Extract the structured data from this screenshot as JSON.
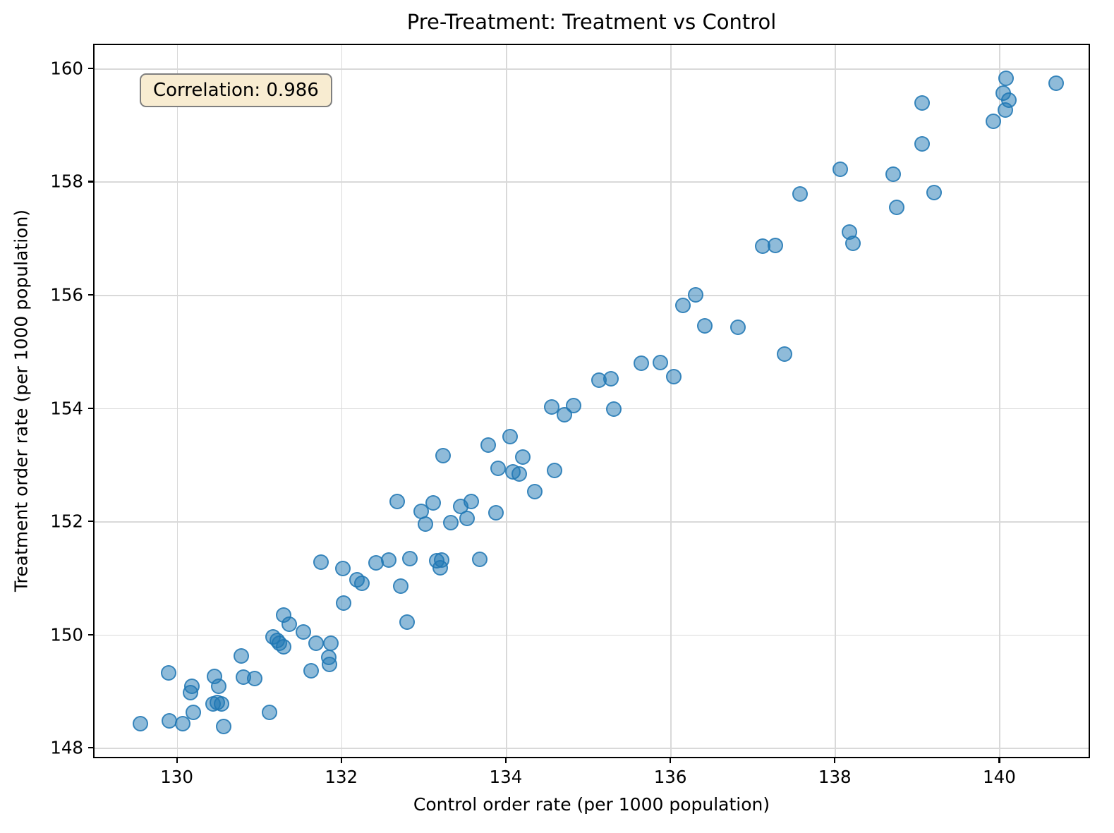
{
  "chart_data": {
    "type": "scatter",
    "title": "Pre-Treatment: Treatment vs Control",
    "xlabel": "Control order rate (per 1000 population)",
    "ylabel": "Treatment order rate (per 1000 population)",
    "annotation": "Correlation: 0.986",
    "annotation_bg": "#f8ecd1",
    "annotation_border": "#7f7f7f",
    "marker_color": "#1f77b4",
    "marker_alpha": 0.6,
    "grid": true,
    "legend": null,
    "xlim": [
      129.0,
      141.12
    ],
    "ylim": [
      147.79,
      160.41
    ],
    "xticks": [
      130,
      132,
      134,
      136,
      138,
      140
    ],
    "yticks": [
      148,
      150,
      152,
      154,
      156,
      158,
      160
    ],
    "points": [
      [
        129.56,
        148.42
      ],
      [
        129.91,
        148.48
      ],
      [
        130.07,
        148.42
      ],
      [
        130.57,
        148.38
      ],
      [
        130.2,
        148.62
      ],
      [
        131.13,
        148.62
      ],
      [
        129.9,
        149.32
      ],
      [
        130.18,
        149.08
      ],
      [
        130.17,
        148.97
      ],
      [
        130.44,
        148.78
      ],
      [
        130.49,
        148.8
      ],
      [
        130.54,
        148.78
      ],
      [
        130.46,
        149.26
      ],
      [
        130.51,
        149.09
      ],
      [
        130.78,
        149.62
      ],
      [
        130.81,
        149.25
      ],
      [
        130.95,
        149.22
      ],
      [
        131.17,
        149.96
      ],
      [
        131.22,
        149.9
      ],
      [
        131.25,
        149.84
      ],
      [
        131.3,
        149.78
      ],
      [
        131.37,
        150.18
      ],
      [
        131.54,
        150.05
      ],
      [
        131.3,
        150.35
      ],
      [
        131.69,
        149.85
      ],
      [
        131.63,
        149.36
      ],
      [
        131.87,
        149.85
      ],
      [
        131.85,
        149.6
      ],
      [
        131.86,
        149.47
      ],
      [
        132.03,
        150.56
      ],
      [
        132.72,
        150.85
      ],
      [
        132.8,
        150.22
      ],
      [
        131.75,
        151.28
      ],
      [
        132.02,
        151.16
      ],
      [
        132.19,
        150.97
      ],
      [
        132.25,
        150.9
      ],
      [
        132.42,
        151.26
      ],
      [
        132.58,
        151.32
      ],
      [
        132.83,
        151.34
      ],
      [
        133.16,
        151.3
      ],
      [
        133.22,
        151.32
      ],
      [
        133.2,
        151.18
      ],
      [
        133.68,
        151.33
      ],
      [
        132.68,
        152.35
      ],
      [
        132.97,
        152.17
      ],
      [
        133.12,
        152.33
      ],
      [
        133.02,
        151.95
      ],
      [
        133.33,
        151.98
      ],
      [
        133.45,
        152.26
      ],
      [
        133.58,
        152.35
      ],
      [
        133.53,
        152.05
      ],
      [
        133.88,
        152.15
      ],
      [
        133.24,
        153.16
      ],
      [
        133.91,
        152.94
      ],
      [
        134.09,
        152.87
      ],
      [
        134.16,
        152.83
      ],
      [
        134.21,
        153.14
      ],
      [
        134.59,
        152.9
      ],
      [
        134.35,
        152.52
      ],
      [
        133.79,
        153.35
      ],
      [
        134.05,
        153.5
      ],
      [
        134.56,
        154.02
      ],
      [
        134.71,
        153.88
      ],
      [
        134.82,
        154.04
      ],
      [
        135.31,
        153.98
      ],
      [
        135.13,
        154.49
      ],
      [
        135.28,
        154.52
      ],
      [
        135.65,
        154.79
      ],
      [
        135.88,
        154.8
      ],
      [
        136.04,
        154.55
      ],
      [
        137.39,
        154.95
      ],
      [
        136.15,
        155.81
      ],
      [
        136.31,
        156.0
      ],
      [
        136.42,
        155.45
      ],
      [
        136.82,
        155.43
      ],
      [
        137.12,
        156.86
      ],
      [
        137.28,
        156.87
      ],
      [
        138.18,
        157.11
      ],
      [
        138.22,
        156.91
      ],
      [
        137.58,
        157.78
      ],
      [
        139.21,
        157.81
      ],
      [
        138.75,
        157.54
      ],
      [
        138.07,
        158.22
      ],
      [
        138.71,
        158.13
      ],
      [
        139.06,
        158.66
      ],
      [
        139.06,
        159.39
      ],
      [
        139.93,
        159.07
      ],
      [
        140.08,
        159.83
      ],
      [
        140.69,
        159.74
      ],
      [
        140.05,
        159.56
      ],
      [
        140.12,
        159.44
      ],
      [
        140.07,
        159.26
      ]
    ]
  }
}
